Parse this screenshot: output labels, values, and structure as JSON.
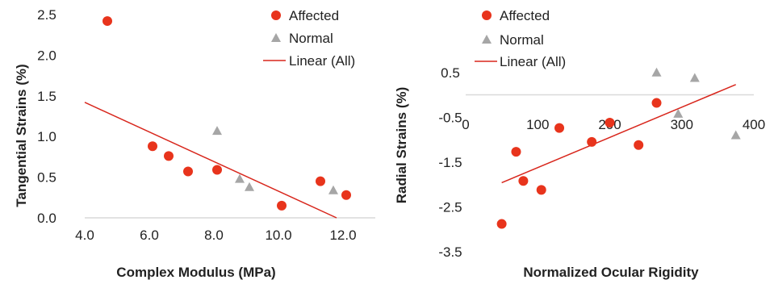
{
  "colors": {
    "affected": "#e8341c",
    "normal": "#a6a6a6",
    "fit": "#d8261c",
    "axis": "#d9d9d9",
    "text": "#222222"
  },
  "chart_data": [
    {
      "type": "scatter",
      "title": "",
      "xlabel": "Complex Modulus (MPa)",
      "ylabel": "Tangential Strains (%)",
      "xlim": [
        4.0,
        13.0
      ],
      "ylim": [
        0,
        2.5
      ],
      "xticks": [
        "4.0",
        "6.0",
        "8.0",
        "10.0",
        "12.0"
      ],
      "xtick_values": [
        4,
        6,
        8,
        10,
        12
      ],
      "yticks": [
        "0.0",
        "0.5",
        "1.0",
        "1.5",
        "2.0",
        "2.5"
      ],
      "ytick_values": [
        0,
        0.5,
        1,
        1.5,
        2,
        2.5
      ],
      "legend_position": "top-right",
      "series": [
        {
          "name": "Affected",
          "marker": "circle",
          "color": "#e8341c",
          "points": [
            [
              4.7,
              2.42
            ],
            [
              6.1,
              0.88
            ],
            [
              6.6,
              0.76
            ],
            [
              7.2,
              0.57
            ],
            [
              8.1,
              0.59
            ],
            [
              10.1,
              0.15
            ],
            [
              11.3,
              0.45
            ],
            [
              12.1,
              0.28
            ]
          ]
        },
        {
          "name": "Normal",
          "marker": "triangle",
          "color": "#a6a6a6",
          "points": [
            [
              8.1,
              1.07
            ],
            [
              8.8,
              0.48
            ],
            [
              9.1,
              0.38
            ],
            [
              11.7,
              0.34
            ]
          ]
        },
        {
          "name": "Linear (All)",
          "marker": "line",
          "color": "#d8261c",
          "points": [
            [
              4.0,
              1.42
            ],
            [
              11.8,
              0.0
            ]
          ]
        }
      ]
    },
    {
      "type": "scatter",
      "title": "",
      "xlabel": "Normalized Ocular Rigidity",
      "ylabel": "Radial Strains (%)",
      "xlim": [
        0,
        400
      ],
      "ylim": [
        -3.5,
        1.0
      ],
      "xticks": [
        "0",
        "100",
        "200",
        "300",
        "400"
      ],
      "xtick_values": [
        0,
        100,
        200,
        300,
        400
      ],
      "yticks": [
        "0.5",
        "-0.5",
        "-1.5",
        "-2.5",
        "-3.5"
      ],
      "ytick_values": [
        0.5,
        -0.5,
        -1.5,
        -2.5,
        -3.5
      ],
      "legend_position": "top-left",
      "series": [
        {
          "name": "Affected",
          "marker": "circle",
          "color": "#e8341c",
          "points": [
            [
              50,
              -2.88
            ],
            [
              70,
              -1.27
            ],
            [
              80,
              -1.92
            ],
            [
              105,
              -2.12
            ],
            [
              130,
              -0.74
            ],
            [
              175,
              -1.05
            ],
            [
              200,
              -0.62
            ],
            [
              240,
              -1.12
            ],
            [
              265,
              -0.18
            ]
          ]
        },
        {
          "name": "Normal",
          "marker": "triangle",
          "color": "#a6a6a6",
          "points": [
            [
              265,
              0.5
            ],
            [
              295,
              -0.42
            ],
            [
              318,
              0.38
            ],
            [
              375,
              -0.9
            ]
          ]
        },
        {
          "name": "Linear (All)",
          "marker": "line",
          "color": "#d8261c",
          "points": [
            [
              50,
              -1.96
            ],
            [
              375,
              0.23
            ]
          ]
        }
      ]
    }
  ]
}
